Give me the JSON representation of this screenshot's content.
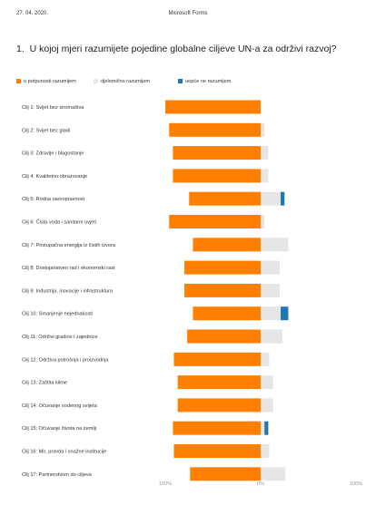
{
  "header": {
    "date": "27. 04. 2020.",
    "app_name": "Microsoft Forms"
  },
  "question": {
    "number": "1.",
    "text": "U kojoj mjeri razumijete pojedine globalne ciljeve UN-a za održivi razvoj?"
  },
  "colors": {
    "full": "#FF7F00",
    "partial": "#E6E6E6",
    "none": "#1F78B4"
  },
  "chart_data": {
    "type": "bar",
    "orientation": "horizontal",
    "stacking": "diverging",
    "legend_position": "top-left",
    "grid": false,
    "xlim": [
      -100,
      100
    ],
    "x_ticks": [
      "100%",
      "0%",
      "100%"
    ],
    "series": [
      {
        "name": "u potpunosti razumijem",
        "key": "full"
      },
      {
        "name": "djelomično razumijem",
        "key": "partial"
      },
      {
        "name": "uopće ne razumijem",
        "key": "none"
      }
    ],
    "categories": [
      "Cilj 1: Svijet bez siromaštva",
      "Cilj 2: Svijet bez gladi",
      "Cilj 3: Zdravlje i blagostanje",
      "Cilj 4: Kvalitetno obrazovanje",
      "Cilj 5: Rodna ravnopravnost",
      "Cilj 6: Čista voda i sanitarni uvjeti",
      "Cilj 7: Pristupačna energija iz čistih izvora",
      "Cilj 8: Dostojanstven rad i ekonomski rast",
      "Cilj 9: Industrija, inovacije i infrastruktura",
      "Cilj 10: Smanjenje nejednakosti",
      "Cilj 11: Održivi gradovi i zajednice",
      "Cilj 12: Održiva potrošnja i proizvodnja",
      "Cilj 13: Zaštita klime",
      "Cilj 14: Očuvanje vodenog svijeta",
      "Cilj 15: Očuvanje života na zemlji",
      "Cilj 16: Mir, pravda i snažne institucije",
      "Cilj 17: Partnerstvom do ciljeva"
    ],
    "values": {
      "full": [
        100,
        96,
        92,
        92,
        75,
        96,
        71,
        80,
        80,
        71,
        77,
        91,
        87,
        87,
        92,
        91,
        74
      ],
      "partial": [
        0,
        4,
        8,
        8,
        21,
        4,
        29,
        20,
        20,
        21,
        23,
        9,
        13,
        13,
        4,
        9,
        26
      ],
      "none": [
        0,
        0,
        0,
        0,
        4,
        0,
        0,
        0,
        0,
        8,
        0,
        0,
        0,
        0,
        4,
        0,
        0
      ]
    }
  }
}
